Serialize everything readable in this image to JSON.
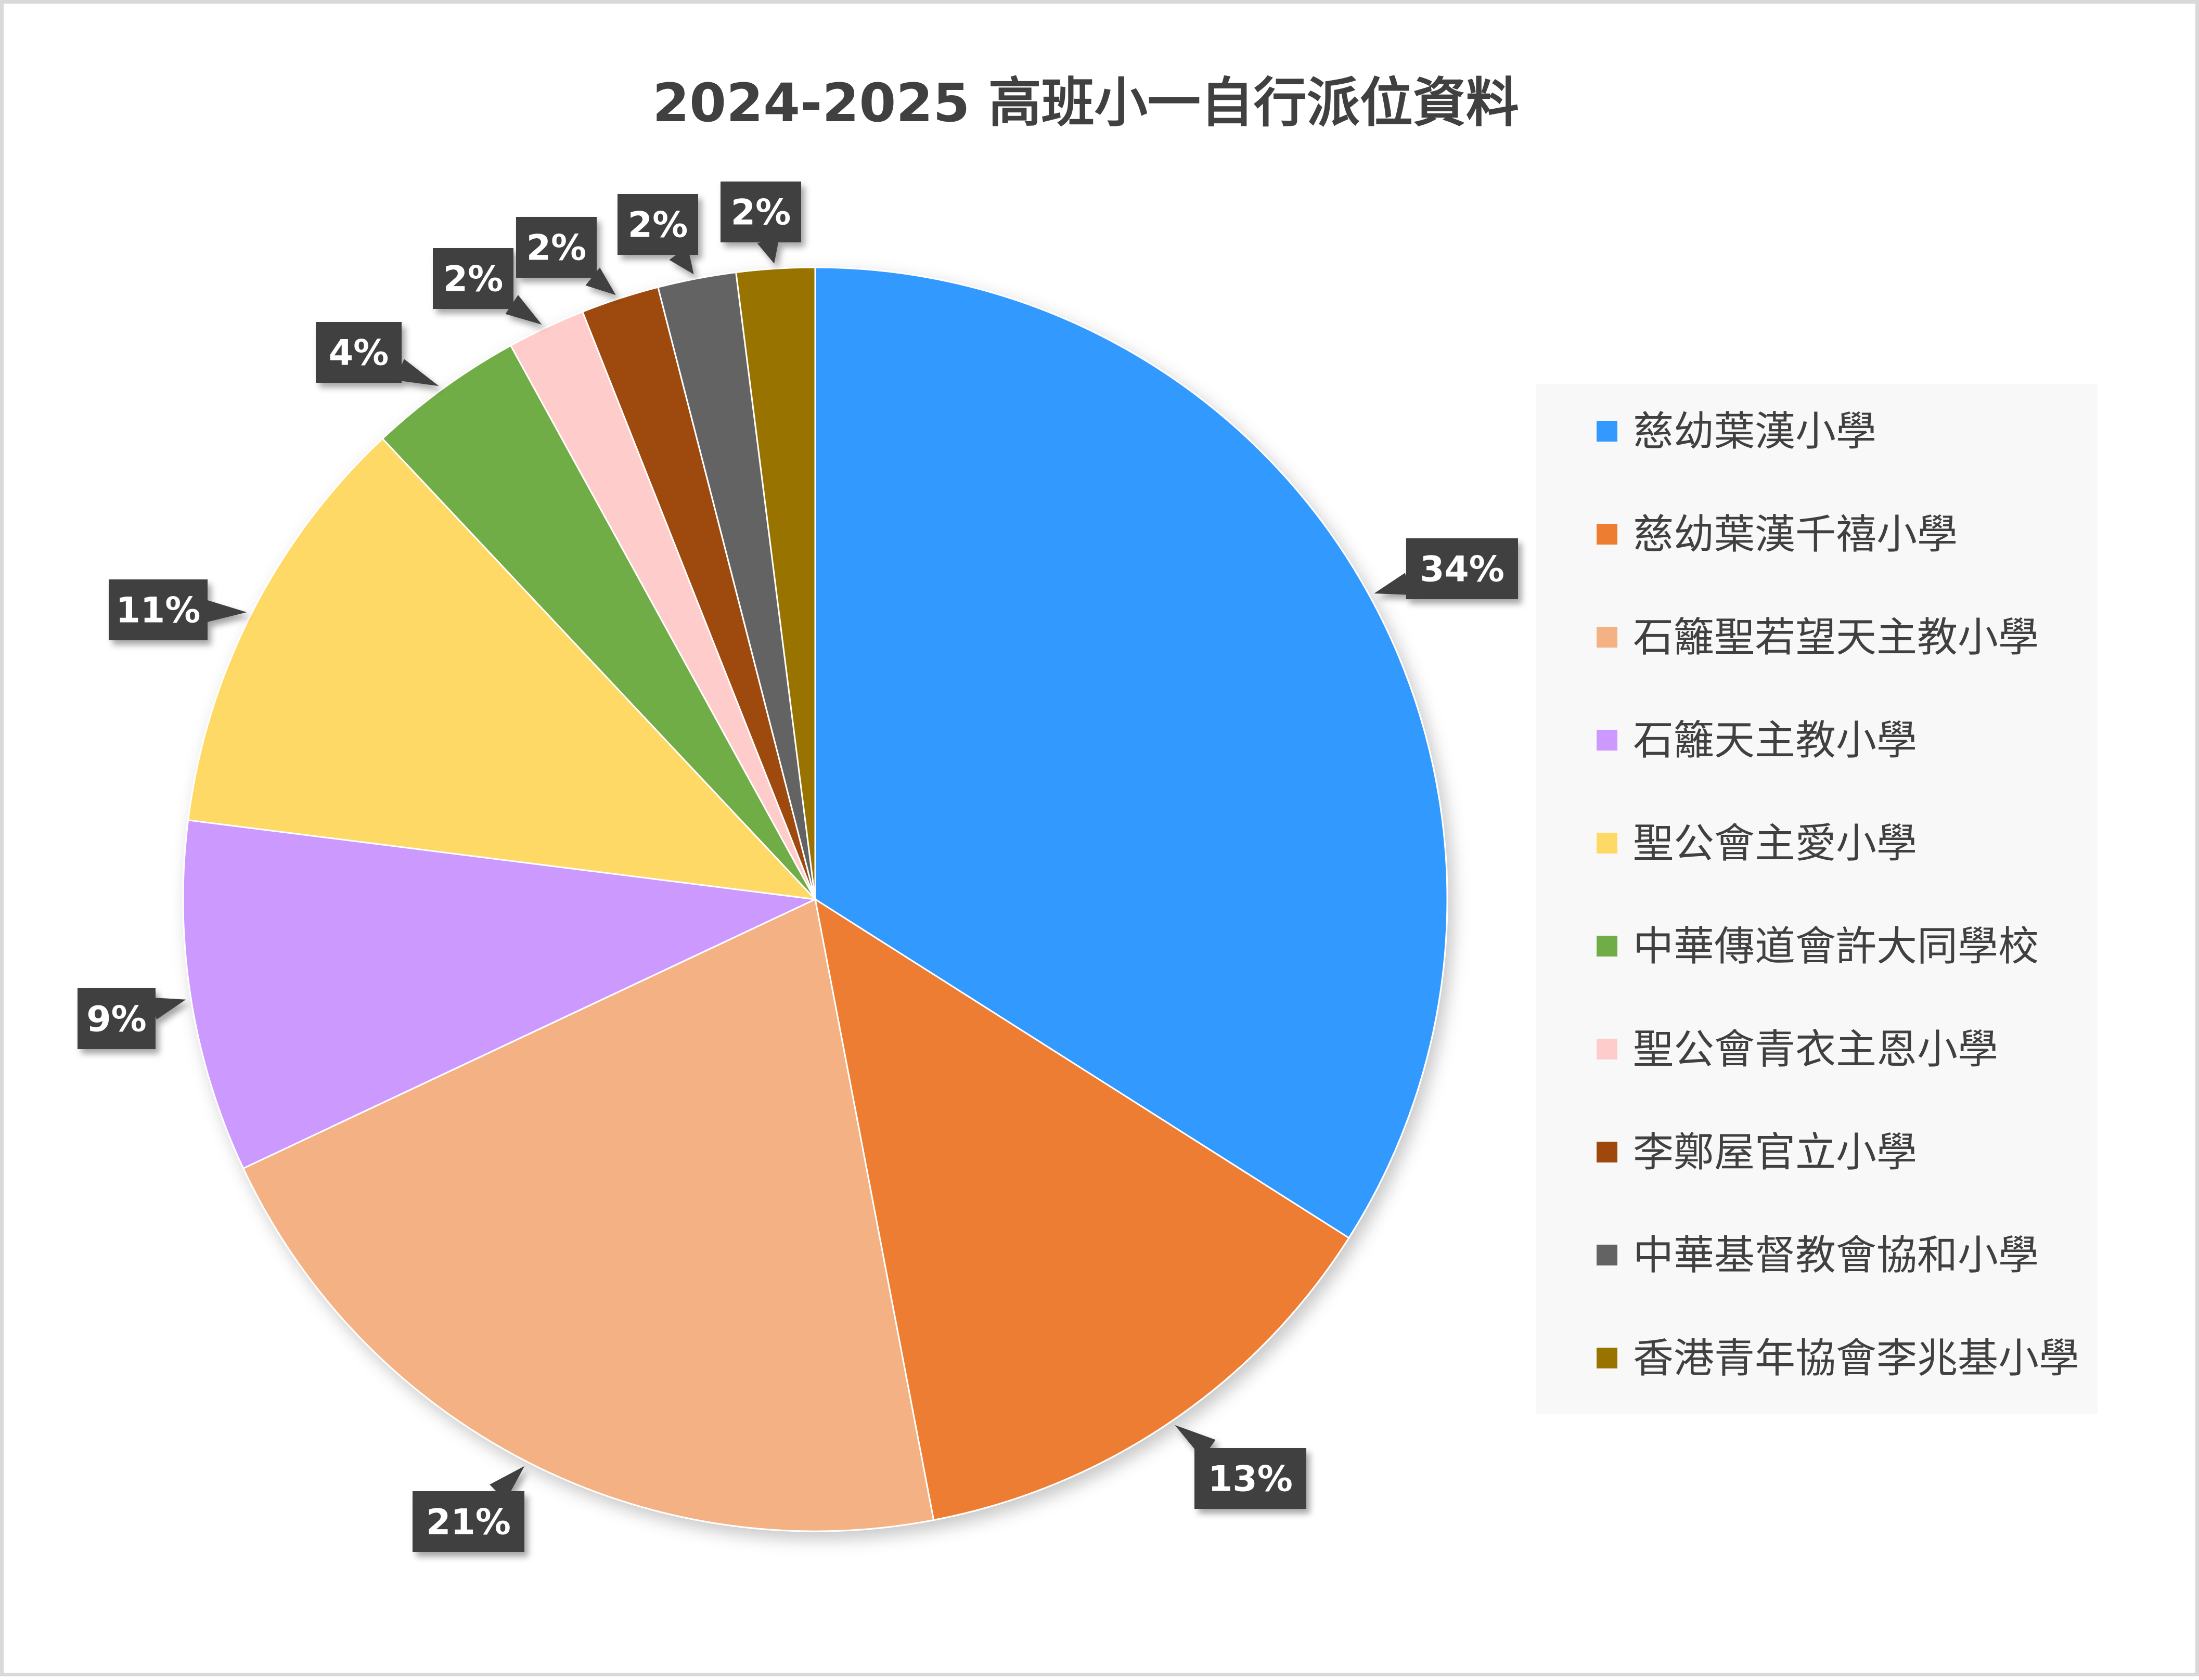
{
  "chart_data": {
    "type": "pie",
    "title": "2024-2025 高班小一自行派位資料",
    "legend_position": "right",
    "data_labels": "percent",
    "categories": [
      "慈幼葉漢小學",
      "慈幼葉漢千禧小學",
      "石籬聖若望天主教小學",
      "石籬天主教小學",
      "聖公會主愛小學",
      "中華傳道會許大同學校",
      "聖公會青衣主恩小學",
      "李鄭屋官立小學",
      "中華基督教會協和小學",
      "香港青年協會李兆基小學"
    ],
    "values": [
      34,
      13,
      21,
      9,
      11,
      4,
      2,
      2,
      2,
      2
    ],
    "labels": [
      "34%",
      "13%",
      "21%",
      "9%",
      "11%",
      "4%",
      "2%",
      "2%",
      "2%",
      "2%"
    ],
    "colors": [
      "#3399FF",
      "#ED7D31",
      "#F4B183",
      "#CC99FF",
      "#FFD966",
      "#70AD47",
      "#FFCCCC",
      "#9E480E",
      "#636363",
      "#997300"
    ],
    "label_box_color": "#404040",
    "legend_background": "#F8F8F8"
  }
}
